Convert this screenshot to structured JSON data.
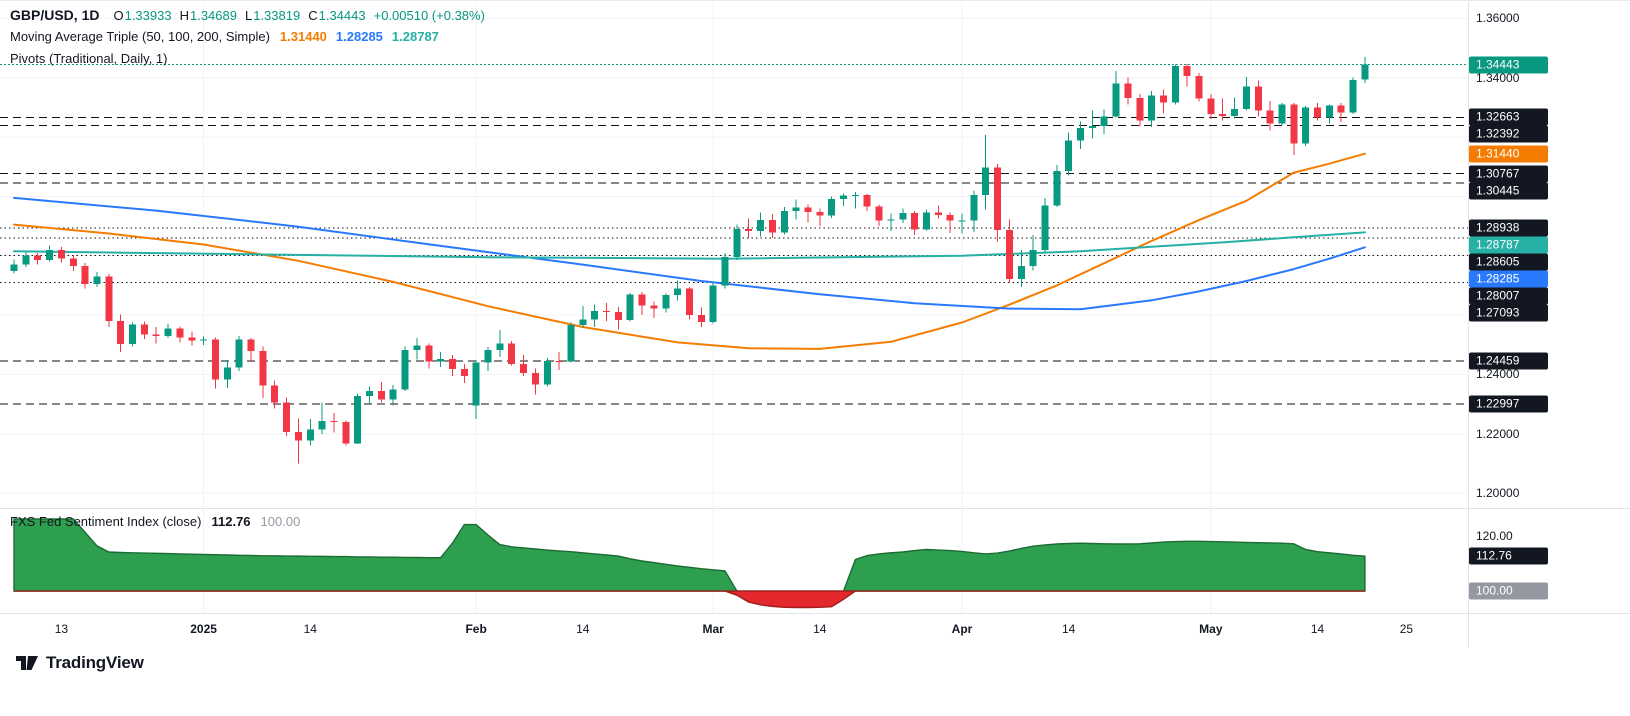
{
  "header": {
    "symbol": "GBP/USD, 1D",
    "ohlc": {
      "o_label": "O",
      "o": "1.33933",
      "h_label": "H",
      "h": "1.34689",
      "l_label": "L",
      "l": "1.33819",
      "c_label": "C",
      "c": "1.34443",
      "change": "+0.00510 (+0.38%)"
    },
    "ma_label": "Moving Average Triple (50, 100, 200, Simple)",
    "ma_values": [
      {
        "text": "1.31440",
        "color": "#f57c00"
      },
      {
        "text": "1.28285",
        "color": "#2979ff"
      },
      {
        "text": "1.28787",
        "color": "#26b0a6"
      }
    ],
    "pivots_label": "Pivots (Traditional, Daily, 1)"
  },
  "indicator": {
    "label": "FXS Fed Sentiment Index (close)",
    "value": "112.76",
    "baseline": "100.00"
  },
  "watermark": {
    "brand": "TradingView"
  },
  "chart_data": {
    "type": "candlestick",
    "title": "GBP/USD, 1D",
    "price_range": [
      1.195,
      1.3655
    ],
    "current_price": 1.34443,
    "colors": {
      "up": "#089981",
      "down": "#f23645",
      "grid": "#f0f3fa",
      "pivot": "#111111",
      "axis_text": "#131722",
      "muted_text": "#9598a1"
    },
    "y_gridlines": [
      1.2,
      1.22,
      1.24,
      1.26,
      1.28,
      1.3,
      1.32,
      1.34,
      1.36
    ],
    "y_grid_labels": [
      {
        "text": "1.36000",
        "price": 1.36
      },
      {
        "text": "1.34000",
        "price": 1.34
      },
      {
        "text": "1.24000",
        "price": 1.24
      },
      {
        "text": "1.22000",
        "price": 1.22
      },
      {
        "text": "1.20000",
        "price": 1.2
      }
    ],
    "y_badges": [
      {
        "text": "1.34443",
        "price": 1.34443,
        "color": "#089981"
      },
      {
        "text": "1.32663",
        "price": 1.32663,
        "color": "#131722"
      },
      {
        "text": "1.32392",
        "price": 1.32392,
        "color": "#131722"
      },
      {
        "text": "1.31440",
        "price": 1.3144,
        "color": "#f57c00"
      },
      {
        "text": "1.30767",
        "price": 1.30767,
        "color": "#131722"
      },
      {
        "text": "1.30445",
        "price": 1.30445,
        "color": "#131722"
      },
      {
        "text": "1.28938",
        "price": 1.28938,
        "color": "#131722"
      },
      {
        "text": "1.28787",
        "price": 1.28787,
        "color": "#26b0a6"
      },
      {
        "text": "1.28605",
        "price": 1.28605,
        "color": "#131722"
      },
      {
        "text": "1.28285",
        "price": 1.28285,
        "color": "#2979ff"
      },
      {
        "text": "1.28007",
        "price": 1.28007,
        "color": "#131722"
      },
      {
        "text": "1.27093",
        "price": 1.27093,
        "color": "#131722"
      },
      {
        "text": "1.24459",
        "price": 1.24459,
        "color": "#131722"
      },
      {
        "text": "1.22997",
        "price": 1.22997,
        "color": "#131722"
      }
    ],
    "pivot_levels": [
      {
        "price": 1.32663,
        "style": "dashed"
      },
      {
        "price": 1.32392,
        "style": "dashed"
      },
      {
        "price": 1.30767,
        "style": "dashed"
      },
      {
        "price": 1.30445,
        "style": "dashed"
      },
      {
        "price": 1.28938,
        "style": "dotted"
      },
      {
        "price": 1.28605,
        "style": "dotted"
      },
      {
        "price": 1.28007,
        "style": "dotted"
      },
      {
        "price": 1.27093,
        "style": "dotted"
      },
      {
        "price": 1.24459,
        "style": "dashed"
      },
      {
        "price": 1.22997,
        "style": "dashed"
      }
    ],
    "x_ticks": [
      {
        "label": "13",
        "index": 4,
        "bold": false
      },
      {
        "label": "2025",
        "index": 16,
        "bold": true
      },
      {
        "label": "14",
        "index": 25,
        "bold": false
      },
      {
        "label": "Feb",
        "index": 39,
        "bold": true
      },
      {
        "label": "14",
        "index": 48,
        "bold": false
      },
      {
        "label": "Mar",
        "index": 59,
        "bold": true
      },
      {
        "label": "14",
        "index": 68,
        "bold": false
      },
      {
        "label": "Apr",
        "index": 80,
        "bold": true
      },
      {
        "label": "14",
        "index": 89,
        "bold": false
      },
      {
        "label": "May",
        "index": 101,
        "bold": true
      },
      {
        "label": "14",
        "index": 110,
        "bold": false
      },
      {
        "label": "25",
        "index": 117.5,
        "bold": false
      }
    ],
    "ma_lines": [
      {
        "name": "sma50",
        "color": "#f57c00",
        "points": [
          [
            0,
            1.2905
          ],
          [
            8,
            1.2875
          ],
          [
            16,
            1.2838
          ],
          [
            24,
            1.2783
          ],
          [
            32,
            1.2712
          ],
          [
            40,
            1.263
          ],
          [
            48,
            1.256
          ],
          [
            56,
            1.2508
          ],
          [
            62,
            1.2488
          ],
          [
            68,
            1.2486
          ],
          [
            74,
            1.251
          ],
          [
            80,
            1.2575
          ],
          [
            84,
            1.2635
          ],
          [
            88,
            1.27
          ],
          [
            92,
            1.2775
          ],
          [
            96,
            1.285
          ],
          [
            100,
            1.292
          ],
          [
            104,
            1.2985
          ],
          [
            108,
            1.308
          ],
          [
            111,
            1.311
          ],
          [
            114,
            1.3144
          ]
        ]
      },
      {
        "name": "sma100",
        "color": "#2979ff",
        "points": [
          [
            0,
            1.2995
          ],
          [
            12,
            1.2952
          ],
          [
            24,
            1.2898
          ],
          [
            36,
            1.2833
          ],
          [
            48,
            1.277
          ],
          [
            58,
            1.2715
          ],
          [
            68,
            1.267
          ],
          [
            76,
            1.264
          ],
          [
            84,
            1.2622
          ],
          [
            90,
            1.262
          ],
          [
            96,
            1.265
          ],
          [
            100,
            1.268
          ],
          [
            104,
            1.2715
          ],
          [
            108,
            1.2755
          ],
          [
            111,
            1.279
          ],
          [
            114,
            1.28285
          ]
        ]
      },
      {
        "name": "sma200",
        "color": "#26b0a6",
        "points": [
          [
            0,
            1.2815
          ],
          [
            20,
            1.2805
          ],
          [
            40,
            1.2795
          ],
          [
            60,
            1.279
          ],
          [
            80,
            1.28
          ],
          [
            90,
            1.2815
          ],
          [
            96,
            1.283
          ],
          [
            102,
            1.2845
          ],
          [
            108,
            1.2862
          ],
          [
            114,
            1.28787
          ]
        ]
      }
    ],
    "candles": [
      [
        1.2748,
        1.2788,
        1.274,
        1.277
      ],
      [
        1.277,
        1.2812,
        1.2762,
        1.28
      ],
      [
        1.28,
        1.281,
        1.277,
        1.2785
      ],
      [
        1.2785,
        1.2834,
        1.278,
        1.282
      ],
      [
        1.282,
        1.283,
        1.2778,
        1.279
      ],
      [
        1.279,
        1.2802,
        1.2748,
        1.2765
      ],
      [
        1.2765,
        1.2775,
        1.269,
        1.2705
      ],
      [
        1.2705,
        1.2745,
        1.2695,
        1.273
      ],
      [
        1.273,
        1.2738,
        1.256,
        1.258
      ],
      [
        1.258,
        1.2602,
        1.2475,
        1.2502
      ],
      [
        1.2502,
        1.2575,
        1.2495,
        1.2568
      ],
      [
        1.2568,
        1.2578,
        1.252,
        1.2535
      ],
      [
        1.2535,
        1.256,
        1.2505,
        1.253
      ],
      [
        1.253,
        1.257,
        1.2522,
        1.2555
      ],
      [
        1.2555,
        1.2562,
        1.2508,
        1.2525
      ],
      [
        1.2525,
        1.2545,
        1.2498,
        1.2515
      ],
      [
        1.2515,
        1.2528,
        1.25,
        1.2517
      ],
      [
        1.2517,
        1.2525,
        1.2352,
        1.2383
      ],
      [
        1.2383,
        1.2448,
        1.2355,
        1.2424
      ],
      [
        1.2424,
        1.253,
        1.2412,
        1.2518
      ],
      [
        1.2518,
        1.2522,
        1.2442,
        1.2479
      ],
      [
        1.2479,
        1.2495,
        1.232,
        1.2362
      ],
      [
        1.2362,
        1.238,
        1.2285,
        1.2305
      ],
      [
        1.2305,
        1.2322,
        1.2193,
        1.2206
      ],
      [
        1.2206,
        1.2252,
        1.21,
        1.2178
      ],
      [
        1.2178,
        1.225,
        1.216,
        1.2215
      ],
      [
        1.2215,
        1.2306,
        1.22,
        1.2243
      ],
      [
        1.2243,
        1.227,
        1.2205,
        1.224
      ],
      [
        1.224,
        1.2245,
        1.216,
        1.2168
      ],
      [
        1.2168,
        1.2335,
        1.2165,
        1.2327
      ],
      [
        1.2327,
        1.236,
        1.23,
        1.2345
      ],
      [
        1.2345,
        1.2375,
        1.2305,
        1.2315
      ],
      [
        1.2315,
        1.2365,
        1.2295,
        1.235
      ],
      [
        1.235,
        1.2495,
        1.2345,
        1.2482
      ],
      [
        1.2482,
        1.2523,
        1.245,
        1.2497
      ],
      [
        1.2497,
        1.2505,
        1.242,
        1.2443
      ],
      [
        1.2443,
        1.2475,
        1.2425,
        1.2452
      ],
      [
        1.2452,
        1.2465,
        1.2395,
        1.2418
      ],
      [
        1.2418,
        1.2435,
        1.2372,
        1.2395
      ],
      [
        1.2295,
        1.2448,
        1.225,
        1.244
      ],
      [
        1.244,
        1.2492,
        1.2412,
        1.2482
      ],
      [
        1.2482,
        1.255,
        1.2458,
        1.2505
      ],
      [
        1.2505,
        1.2512,
        1.243,
        1.2436
      ],
      [
        1.2436,
        1.2465,
        1.2395,
        1.2405
      ],
      [
        1.2405,
        1.242,
        1.2333,
        1.2366
      ],
      [
        1.2366,
        1.2455,
        1.236,
        1.2445
      ],
      [
        1.2445,
        1.2475,
        1.2415,
        1.2444
      ],
      [
        1.2444,
        1.2575,
        1.244,
        1.2566
      ],
      [
        1.2566,
        1.263,
        1.2558,
        1.2585
      ],
      [
        1.2585,
        1.2635,
        1.256,
        1.2614
      ],
      [
        1.2614,
        1.264,
        1.258,
        1.261
      ],
      [
        1.261,
        1.2628,
        1.2552,
        1.2584
      ],
      [
        1.2584,
        1.2675,
        1.2578,
        1.267
      ],
      [
        1.267,
        1.2678,
        1.26,
        1.2632
      ],
      [
        1.2632,
        1.2645,
        1.259,
        1.2622
      ],
      [
        1.2622,
        1.2672,
        1.2608,
        1.2668
      ],
      [
        1.2668,
        1.2716,
        1.265,
        1.269
      ],
      [
        1.269,
        1.2695,
        1.2585,
        1.26
      ],
      [
        1.26,
        1.2625,
        1.256,
        1.2577
      ],
      [
        1.2577,
        1.271,
        1.2572,
        1.27
      ],
      [
        1.27,
        1.281,
        1.269,
        1.2795
      ],
      [
        1.2795,
        1.2905,
        1.2785,
        1.289
      ],
      [
        1.289,
        1.2925,
        1.2858,
        1.2883
      ],
      [
        1.2883,
        1.2945,
        1.2865,
        1.2921
      ],
      [
        1.2921,
        1.294,
        1.286,
        1.2878
      ],
      [
        1.2878,
        1.2965,
        1.2872,
        1.295
      ],
      [
        1.295,
        1.299,
        1.2922,
        1.2963
      ],
      [
        1.2963,
        1.2972,
        1.2912,
        1.2948
      ],
      [
        1.2948,
        1.296,
        1.29,
        1.2936
      ],
      [
        1.2936,
        1.3,
        1.2928,
        1.2992
      ],
      [
        1.2992,
        1.301,
        1.2968,
        1.3003
      ],
      [
        1.3003,
        1.3015,
        1.296,
        1.3004
      ],
      [
        1.3004,
        1.3008,
        1.295,
        1.2966
      ],
      [
        1.2966,
        1.2972,
        1.29,
        1.2918
      ],
      [
        1.2918,
        1.2942,
        1.2883,
        1.2922
      ],
      [
        1.2922,
        1.296,
        1.291,
        1.2944
      ],
      [
        1.2944,
        1.295,
        1.287,
        1.2889
      ],
      [
        1.2889,
        1.2955,
        1.2885,
        1.2945
      ],
      [
        1.2945,
        1.297,
        1.2925,
        1.2938
      ],
      [
        1.2938,
        1.2946,
        1.2876,
        1.2918
      ],
      [
        1.2918,
        1.2942,
        1.2875,
        1.2919
      ],
      [
        1.2919,
        1.302,
        1.288,
        1.3005
      ],
      [
        1.3005,
        1.3207,
        1.2955,
        1.3098
      ],
      [
        1.3098,
        1.3109,
        1.2848,
        1.2887
      ],
      [
        1.2887,
        1.2922,
        1.2708,
        1.2722
      ],
      [
        1.2722,
        1.282,
        1.2695,
        1.2766
      ],
      [
        1.2766,
        1.287,
        1.275,
        1.282
      ],
      [
        1.282,
        1.2995,
        1.2812,
        1.297
      ],
      [
        1.297,
        1.3105,
        1.2965,
        1.3085
      ],
      [
        1.3085,
        1.3215,
        1.307,
        1.3188
      ],
      [
        1.3188,
        1.3253,
        1.316,
        1.323
      ],
      [
        1.323,
        1.329,
        1.3195,
        1.3238
      ],
      [
        1.3238,
        1.3292,
        1.321,
        1.327
      ],
      [
        1.327,
        1.3422,
        1.3265,
        1.338
      ],
      [
        1.338,
        1.34,
        1.331,
        1.3332
      ],
      [
        1.3332,
        1.3345,
        1.3235,
        1.3255
      ],
      [
        1.3255,
        1.3355,
        1.3233,
        1.334
      ],
      [
        1.334,
        1.336,
        1.328,
        1.3317
      ],
      [
        1.3317,
        1.3445,
        1.331,
        1.344
      ],
      [
        1.344,
        1.3446,
        1.3371,
        1.3405
      ],
      [
        1.3405,
        1.3415,
        1.332,
        1.3329
      ],
      [
        1.3329,
        1.3345,
        1.326,
        1.3277
      ],
      [
        1.3277,
        1.333,
        1.3256,
        1.3271
      ],
      [
        1.3271,
        1.3333,
        1.3262,
        1.3295
      ],
      [
        1.3295,
        1.3402,
        1.329,
        1.337
      ],
      [
        1.337,
        1.339,
        1.327,
        1.329
      ],
      [
        1.329,
        1.3322,
        1.3222,
        1.3245
      ],
      [
        1.3245,
        1.3315,
        1.324,
        1.331
      ],
      [
        1.331,
        1.3315,
        1.314,
        1.3178
      ],
      [
        1.3178,
        1.3305,
        1.317,
        1.33
      ],
      [
        1.33,
        1.3315,
        1.3255,
        1.3265
      ],
      [
        1.3265,
        1.331,
        1.3245,
        1.3306
      ],
      [
        1.3306,
        1.3315,
        1.325,
        1.3283
      ],
      [
        1.3283,
        1.34,
        1.3278,
        1.3393
      ],
      [
        1.33933,
        1.34689,
        1.33819,
        1.34443
      ]
    ],
    "sentiment": {
      "name": "FXS Fed Sentiment Index (close)",
      "baseline": 100,
      "range": [
        92,
        130
      ],
      "up_fill": "#2e9e4f",
      "up_stroke": "#1c6b33",
      "down_fill": "#e3282e",
      "down_stroke": "#a21c1c",
      "values": [
        126.4,
        126.4,
        126.4,
        126.4,
        126.4,
        126.4,
        121.5,
        116.5,
        114.3,
        114.1,
        114.0,
        113.9,
        113.8,
        113.7,
        113.6,
        113.5,
        113.4,
        113.3,
        113.2,
        113.1,
        113.0,
        112.9,
        112.9,
        112.8,
        112.8,
        112.7,
        112.7,
        112.6,
        112.6,
        112.5,
        112.5,
        112.4,
        112.4,
        112.3,
        112.3,
        112.2,
        112.2,
        117.5,
        124.3,
        124.3,
        120.5,
        117.0,
        116.2,
        115.8,
        115.4,
        115.0,
        114.7,
        114.4,
        114.0,
        113.6,
        113.2,
        112.8,
        111.8,
        111.0,
        110.4,
        109.8,
        109.2,
        108.7,
        108.2,
        107.8,
        107.4,
        98.5,
        96.0,
        95.0,
        94.4,
        94.1,
        94.0,
        94.0,
        94.1,
        94.3,
        97.0,
        111.5,
        113.0,
        113.6,
        114.0,
        114.3,
        114.8,
        115.2,
        115.0,
        114.8,
        114.5,
        114.0,
        113.6,
        113.9,
        114.6,
        115.6,
        116.4,
        116.9,
        117.2,
        117.4,
        117.5,
        117.4,
        117.3,
        117.2,
        117.2,
        117.3,
        117.6,
        117.9,
        118.1,
        118.2,
        118.2,
        118.1,
        118.0,
        117.9,
        117.8,
        117.7,
        117.6,
        117.5,
        117.3,
        115.2,
        114.4,
        114.0,
        113.6,
        113.1,
        112.76
      ]
    },
    "ind_axis": {
      "grid_labels": [
        {
          "text": "120.00",
          "value": 120
        }
      ],
      "badges": [
        {
          "text": "112.76",
          "value": 112.76,
          "color": "#131722"
        },
        {
          "text": "100.00",
          "value": 100,
          "color": "#9598a1"
        }
      ]
    }
  }
}
